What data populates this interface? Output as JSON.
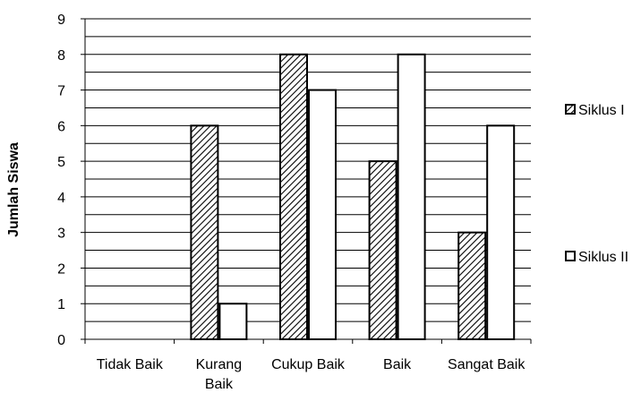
{
  "chart_data": {
    "type": "bar",
    "title": "",
    "xlabel": "",
    "ylabel": "Jumlah  Siswa",
    "ylim": [
      0,
      9
    ],
    "yticks": [
      0,
      1,
      2,
      3,
      4,
      5,
      6,
      7,
      8,
      9
    ],
    "minor_gridlines": true,
    "grid": true,
    "legend_position": "right",
    "categories": [
      [
        "Tidak Baik"
      ],
      [
        "Kurang",
        "Baik"
      ],
      [
        "Cukup Baik"
      ],
      [
        "Baik"
      ],
      [
        "Sangat Baik"
      ]
    ],
    "series": [
      {
        "name": "Siklus I",
        "pattern": "diagonal-hatch",
        "color": "#000000",
        "values": [
          0,
          6,
          8,
          5,
          3
        ]
      },
      {
        "name": "Siklus II",
        "pattern": "solid-white",
        "color": "#ffffff",
        "values": [
          0,
          1,
          7,
          8,
          6
        ]
      }
    ]
  }
}
